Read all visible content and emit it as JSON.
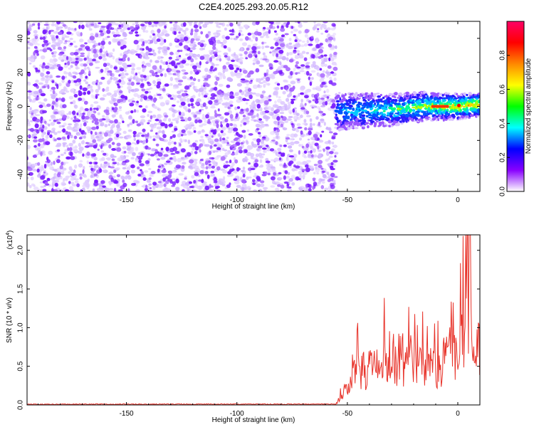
{
  "title": "C2E4.2025.293.20.05.R12",
  "colors": {
    "trace": "#e8332a",
    "noise_dark": "#7b1fff",
    "noise_light": "#d9c2ff"
  },
  "chart_data": [
    {
      "type": "heatmap",
      "name": "spectrogram",
      "xlabel": "Height of straight line (km)",
      "ylabel": "Frequency (Hz)",
      "xlim": [
        -195,
        10
      ],
      "ylim": [
        -50,
        50
      ],
      "xticks": [
        -150,
        -100,
        -50,
        0
      ],
      "yticks": [
        -40,
        -20,
        0,
        20,
        40
      ],
      "noise_region": {
        "x": [
          -195,
          -55
        ],
        "y": [
          -50,
          50
        ]
      },
      "signal_band": {
        "x": [
          -55,
          10
        ],
        "center_hz": [
          -3,
          -2,
          0,
          0,
          1
        ],
        "center_x": [
          -55,
          -30,
          -15,
          0,
          10
        ]
      },
      "colorbar": {
        "label": "Normalized spectral amplitude",
        "range": [
          0,
          1
        ],
        "ticks": [
          0.0,
          0.2,
          0.4,
          0.6,
          0.8
        ],
        "tick_labels": [
          "0.0",
          "0.2",
          "0.4",
          "0.6",
          "0.8"
        ],
        "colors": [
          "#ffffff",
          "#8800ff",
          "#0000ff",
          "#00ffff",
          "#00ff00",
          "#ffff00",
          "#ff8800",
          "#ff0000",
          "#ff0066"
        ]
      }
    },
    {
      "type": "line",
      "name": "snr",
      "xlabel": "Height of straight line (km)",
      "ylabel": "SNR (10 * v/v)",
      "scale_label": "(x10",
      "scale_exp": "4",
      "xlim": [
        -195,
        10
      ],
      "ylim": [
        0,
        2.2
      ],
      "xticks": [
        -150,
        -100,
        -50,
        0
      ],
      "yticks": [
        0.0,
        0.5,
        1.0,
        1.5,
        2.0
      ],
      "ytick_labels": [
        "0.0",
        "0.5",
        "1.0",
        "1.5",
        "2.0"
      ],
      "baseline": 0.01,
      "envelope_x": [
        -55,
        -50,
        -45,
        -40,
        -35,
        -30,
        -25,
        -20,
        -15,
        -10,
        -5,
        0,
        2,
        5,
        7,
        10
      ],
      "envelope_y": [
        0.02,
        0.25,
        0.55,
        0.55,
        0.6,
        0.75,
        0.65,
        0.6,
        0.6,
        0.55,
        0.75,
        0.9,
        1.0,
        1.3,
        0.7,
        1.0
      ],
      "peak": {
        "x": 5.5,
        "y": 2.2
      }
    }
  ]
}
